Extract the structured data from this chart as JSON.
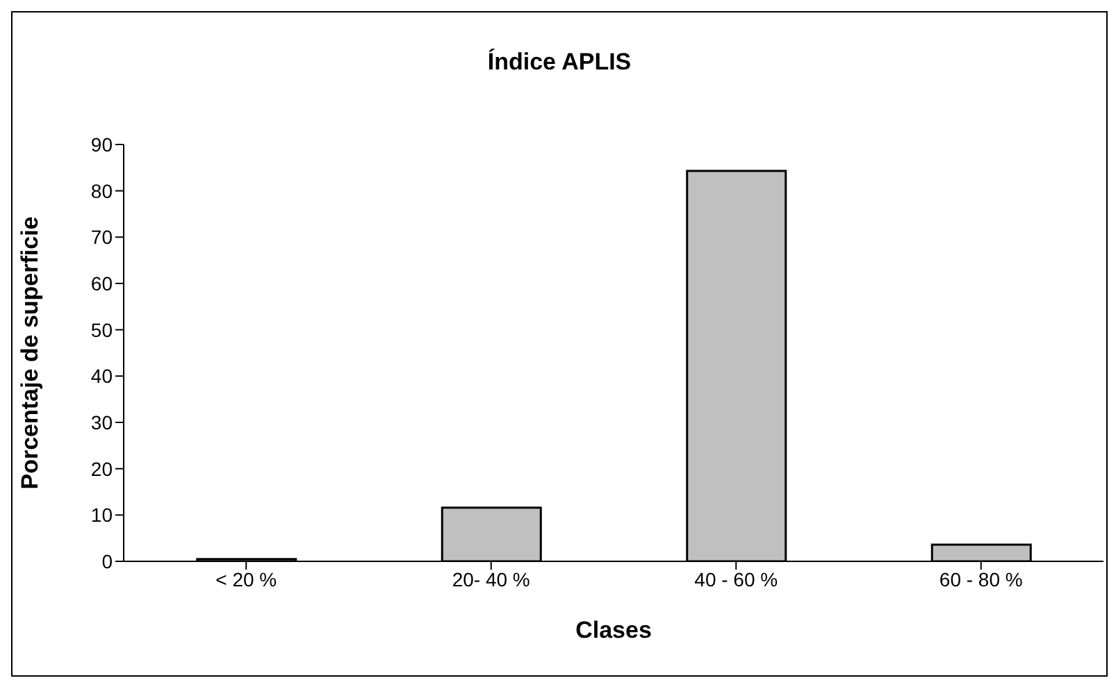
{
  "chart_data": {
    "type": "bar",
    "title": "Índice APLIS",
    "xlabel": "Clases",
    "ylabel": "Porcentaje de superficie",
    "categories": [
      "< 20 %",
      "20- 40 %",
      "40 - 60 %",
      "60 - 80 %"
    ],
    "values": [
      0.5,
      11.6,
      84.3,
      3.6
    ],
    "color": "#c0c0c0",
    "ylim": [
      0,
      90
    ],
    "yticks": [
      0,
      10,
      20,
      30,
      40,
      50,
      60,
      70,
      80,
      90
    ],
    "grid": false
  }
}
